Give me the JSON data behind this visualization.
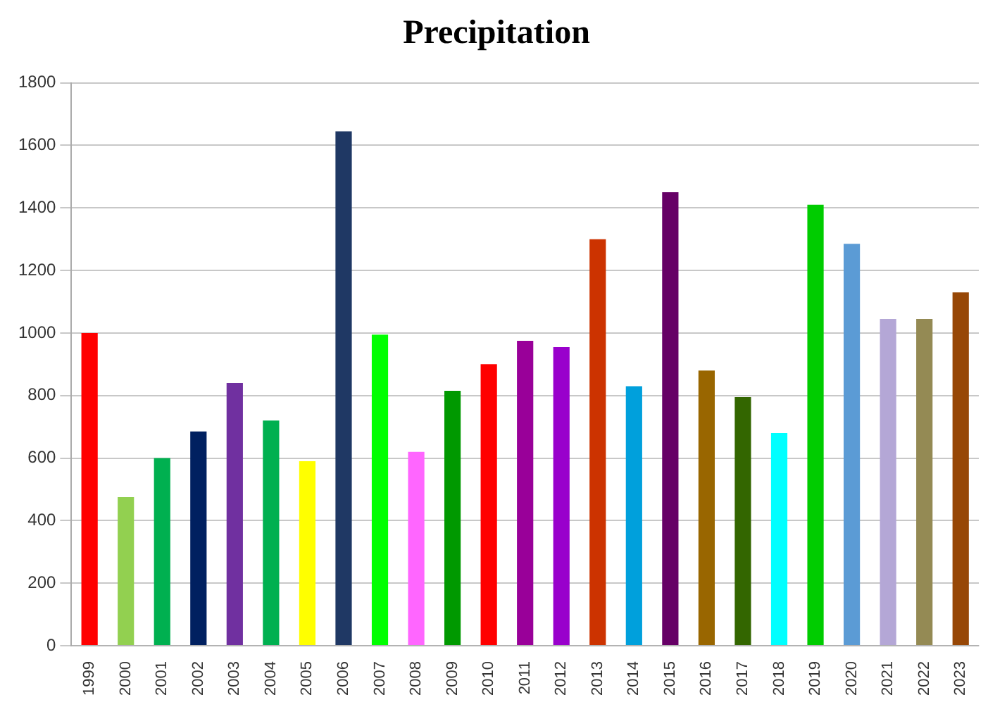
{
  "chart_data": {
    "type": "bar",
    "title": "Precipitation",
    "categories": [
      "1999",
      "2000",
      "2001",
      "2002",
      "2003",
      "2004",
      "2005",
      "2006",
      "2007",
      "2008",
      "2009",
      "2010",
      "2011",
      "2012",
      "2013",
      "2014",
      "2015",
      "2016",
      "2017",
      "2018",
      "2019",
      "2020",
      "2021",
      "2022",
      "2023"
    ],
    "values": [
      1000,
      475,
      600,
      685,
      840,
      720,
      590,
      1645,
      995,
      620,
      815,
      900,
      975,
      955,
      1300,
      830,
      1450,
      880,
      795,
      680,
      1410,
      1285,
      1045,
      1045,
      1130
    ],
    "colors": [
      "#ff0000",
      "#92d050",
      "#00b050",
      "#002060",
      "#7030a0",
      "#00b050",
      "#ffff00",
      "#1f3864",
      "#00ff00",
      "#ff66ff",
      "#009900",
      "#ff0000",
      "#990099",
      "#9900cc",
      "#cc3300",
      "#00a0dc",
      "#660066",
      "#996600",
      "#336600",
      "#00ffff",
      "#00cc00",
      "#5b9bd5",
      "#b4a7d6",
      "#948a54",
      "#974706"
    ],
    "ylim": [
      0,
      1800
    ],
    "yticks": [
      0,
      200,
      400,
      600,
      800,
      1000,
      1200,
      1400,
      1600,
      1800
    ],
    "grid": "y",
    "legend": false
  }
}
